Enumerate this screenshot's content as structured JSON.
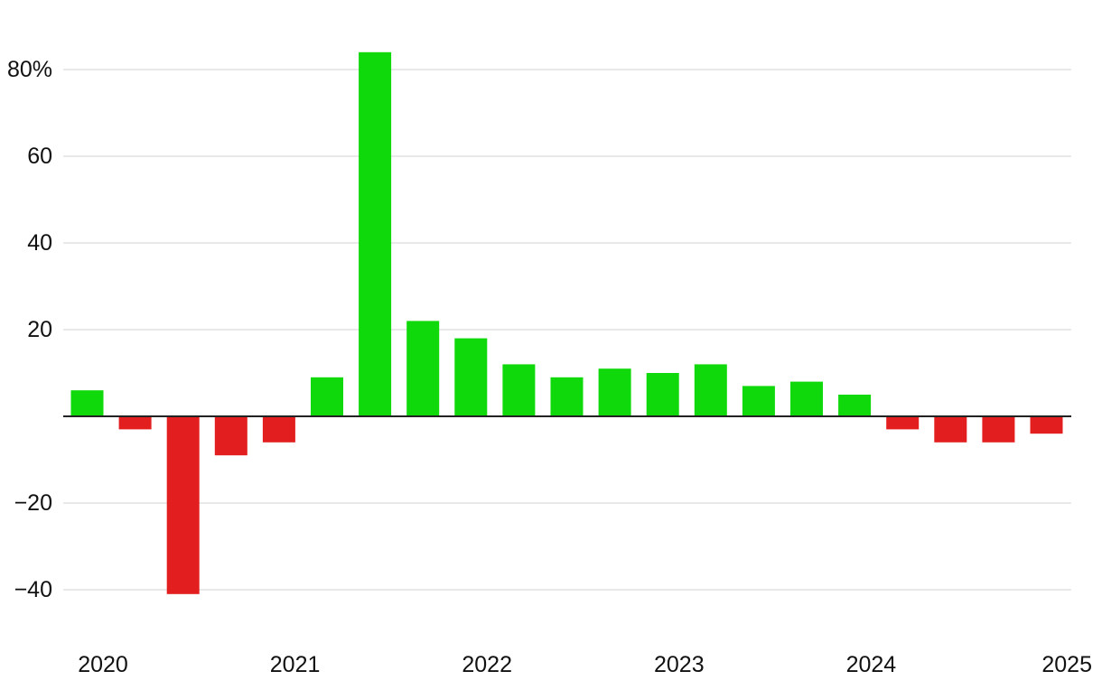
{
  "chart_data": {
    "type": "bar",
    "title": "",
    "xlabel": "",
    "ylabel": "",
    "ylim": [
      -52,
      90
    ],
    "y_unit_suffix": "%",
    "y_ticks": [
      80,
      60,
      40,
      20,
      -20,
      -40
    ],
    "y_tick_labels": [
      "80%",
      "60",
      "40",
      "20",
      "−20",
      "−40"
    ],
    "x_tick_labels": [
      "2020",
      "2021",
      "2022",
      "2023",
      "2024",
      "2025"
    ],
    "grid": true,
    "legend": "none",
    "categories": [
      "2020 Q1",
      "2020 Q2",
      "2020 Q3",
      "2020 Q4",
      "2021 Q1",
      "2021 Q2",
      "2021 Q3",
      "2021 Q4",
      "2022 Q1",
      "2022 Q2",
      "2022 Q3",
      "2022 Q4",
      "2023 Q1",
      "2023 Q2",
      "2023 Q3",
      "2023 Q4",
      "2024 Q1",
      "2024 Q2",
      "2024 Q3",
      "2024 Q4",
      "2025 Q1"
    ],
    "values": [
      6,
      -3,
      -41,
      -9,
      -6,
      9,
      84,
      22,
      18,
      12,
      9,
      11,
      10,
      12,
      7,
      8,
      5,
      -3,
      -6,
      -6,
      -4
    ],
    "colors": {
      "positive": "#0fd90a",
      "negative": "#e31e1e",
      "grid": "#e2e2e2",
      "zero_line": "#222222"
    }
  }
}
